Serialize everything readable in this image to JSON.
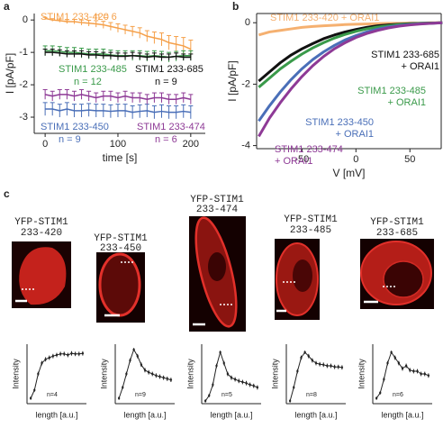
{
  "panel_labels": [
    "a",
    "b",
    "c"
  ],
  "images": [
    {
      "title": [
        "YFP-STIM1",
        "233-420"
      ]
    },
    {
      "title": [
        "YFP-STIM1",
        "233-450"
      ]
    },
    {
      "title": [
        "YFP-STIM1",
        "233-474"
      ]
    },
    {
      "title": [
        "YFP-STIM1",
        "233-485"
      ]
    },
    {
      "title": [
        "YFP-STIM1",
        "233-685"
      ]
    }
  ],
  "chart_data": [
    {
      "type": "line",
      "x_label": "time [s]",
      "y_label": "I [pA/pF]",
      "xlim": [
        -15,
        220
      ],
      "ylim": [
        -3.5,
        0.2
      ],
      "xticks": [
        0,
        100,
        200
      ],
      "yticks": [
        0,
        -1,
        -2,
        -3
      ],
      "x": [
        0,
        10,
        20,
        30,
        40,
        50,
        60,
        70,
        80,
        90,
        100,
        110,
        120,
        130,
        140,
        150,
        160,
        170,
        180,
        190,
        200
      ],
      "series": [
        {
          "name": "STIM1 233-420",
          "n_label": "n = 6",
          "color": "#f5a04a",
          "values": [
            0.05,
            0.0,
            -0.02,
            -0.05,
            -0.05,
            -0.08,
            -0.1,
            -0.12,
            -0.15,
            -0.2,
            -0.25,
            -0.3,
            -0.35,
            -0.4,
            -0.5,
            -0.55,
            -0.6,
            -0.7,
            -0.75,
            -0.8,
            -0.9
          ],
          "errors": [
            0.03,
            0.04,
            0.05,
            0.06,
            0.07,
            0.08,
            0.09,
            0.1,
            0.11,
            0.12,
            0.13,
            0.14,
            0.15,
            0.16,
            0.17,
            0.18,
            0.2,
            0.22,
            0.24,
            0.26,
            0.28
          ]
        },
        {
          "name": "STIM1 233-485",
          "n_label": "n = 12",
          "color": "#3a9a4a",
          "values": [
            -0.95,
            -0.95,
            -0.97,
            -1.0,
            -1.0,
            -1.02,
            -1.05,
            -1.05,
            -1.05,
            -1.08,
            -1.1,
            -1.1,
            -1.1,
            -1.1,
            -1.12,
            -1.1,
            -1.12,
            -1.15,
            -1.12,
            -1.1,
            -1.1
          ],
          "errors": [
            0.15,
            0.15,
            0.15,
            0.15,
            0.15,
            0.15,
            0.15,
            0.15,
            0.15,
            0.15,
            0.15,
            0.15,
            0.15,
            0.15,
            0.15,
            0.15,
            0.15,
            0.15,
            0.15,
            0.15,
            0.15
          ]
        },
        {
          "name": "STIM1 233-685",
          "n_label": "n = 9",
          "color": "#111111",
          "values": [
            -1.0,
            -1.0,
            -1.02,
            -1.05,
            -1.05,
            -1.05,
            -1.08,
            -1.08,
            -1.1,
            -1.1,
            -1.12,
            -1.12,
            -1.1,
            -1.12,
            -1.15,
            -1.12,
            -1.15,
            -1.15,
            -1.12,
            -1.15,
            -1.15
          ],
          "errors": [
            0.1,
            0.1,
            0.1,
            0.1,
            0.1,
            0.1,
            0.1,
            0.1,
            0.1,
            0.1,
            0.1,
            0.1,
            0.1,
            0.1,
            0.1,
            0.1,
            0.1,
            0.1,
            0.1,
            0.1,
            0.1
          ]
        },
        {
          "name": "STIM1 233-450",
          "n_label": "n = 9",
          "color": "#4a6fb8",
          "values": [
            -2.75,
            -2.75,
            -2.8,
            -2.75,
            -2.8,
            -2.8,
            -2.78,
            -2.8,
            -2.8,
            -2.82,
            -2.8,
            -2.8,
            -2.85,
            -2.82,
            -2.8,
            -2.85,
            -2.82,
            -2.85,
            -2.85,
            -2.82,
            -2.85
          ],
          "errors": [
            0.2,
            0.2,
            0.2,
            0.2,
            0.2,
            0.2,
            0.2,
            0.2,
            0.2,
            0.2,
            0.2,
            0.2,
            0.2,
            0.2,
            0.2,
            0.2,
            0.2,
            0.2,
            0.2,
            0.2,
            0.2
          ]
        },
        {
          "name": "STIM1 233-474",
          "n_label": "n = 6",
          "color": "#8e3a96",
          "values": [
            -2.3,
            -2.35,
            -2.3,
            -2.3,
            -2.35,
            -2.3,
            -2.35,
            -2.4,
            -2.35,
            -2.35,
            -2.4,
            -2.35,
            -2.4,
            -2.4,
            -2.45,
            -2.4,
            -2.4,
            -2.45,
            -2.45,
            -2.4,
            -2.45
          ],
          "errors": [
            0.15,
            0.15,
            0.15,
            0.15,
            0.15,
            0.15,
            0.15,
            0.15,
            0.15,
            0.15,
            0.15,
            0.15,
            0.15,
            0.15,
            0.15,
            0.15,
            0.15,
            0.15,
            0.15,
            0.15,
            0.15
          ]
        }
      ]
    },
    {
      "type": "line",
      "x_label": "V [mV]",
      "y_label": "I [pA/pF]",
      "xlim": [
        -92,
        79
      ],
      "ylim": [
        -4.1,
        0.3
      ],
      "xticks": [
        -50,
        0,
        50
      ],
      "yticks": [
        0,
        -2,
        -4
      ],
      "x": [
        -90,
        -80,
        -70,
        -60,
        -50,
        -40,
        -30,
        -20,
        -10,
        0,
        10,
        20,
        30,
        40,
        50,
        60,
        70,
        80
      ],
      "series": [
        {
          "name": [
            "STIM1 233-420 + ORAI1"
          ],
          "color": "#f5b070",
          "values": [
            -0.4,
            -0.3,
            -0.25,
            -0.2,
            -0.15,
            -0.12,
            -0.1,
            -0.08,
            -0.06,
            -0.05,
            -0.04,
            -0.03,
            -0.02,
            -0.02,
            -0.01,
            -0.01,
            0,
            0
          ]
        },
        {
          "name": [
            "STIM1 233-685",
            "+ ORAI1"
          ],
          "color": "#111111",
          "values": [
            -1.9,
            -1.6,
            -1.3,
            -1.05,
            -0.85,
            -0.68,
            -0.52,
            -0.4,
            -0.3,
            -0.22,
            -0.15,
            -0.1,
            -0.07,
            -0.05,
            -0.03,
            -0.02,
            -0.01,
            0
          ]
        },
        {
          "name": [
            "STIM1 233-485",
            "+ ORAI1"
          ],
          "color": "#3a9a4a",
          "values": [
            -2.1,
            -1.8,
            -1.5,
            -1.25,
            -1.02,
            -0.82,
            -0.65,
            -0.5,
            -0.38,
            -0.28,
            -0.2,
            -0.14,
            -0.1,
            -0.06,
            -0.04,
            -0.02,
            -0.01,
            0
          ]
        },
        {
          "name": [
            "STIM1 233-450",
            "+ ORAI1"
          ],
          "color": "#4a6fb8",
          "values": [
            -3.2,
            -2.7,
            -2.25,
            -1.85,
            -1.5,
            -1.2,
            -0.95,
            -0.74,
            -0.56,
            -0.42,
            -0.3,
            -0.21,
            -0.14,
            -0.09,
            -0.06,
            -0.03,
            -0.02,
            0
          ]
        },
        {
          "name": [
            "STIM1 233-474",
            "+ ORAI1"
          ],
          "color": "#8e3a96",
          "values": [
            -3.7,
            -3.1,
            -2.6,
            -2.15,
            -1.75,
            -1.4,
            -1.1,
            -0.85,
            -0.65,
            -0.48,
            -0.35,
            -0.25,
            -0.17,
            -0.11,
            -0.07,
            -0.04,
            -0.02,
            0
          ]
        }
      ]
    },
    {
      "type": "line",
      "x_label": "length [a.u.]",
      "y_label": "Intensity",
      "n_label": "n=4",
      "xlim": [
        0,
        16
      ],
      "ylim": [
        0,
        1.1
      ],
      "x": [
        1,
        2,
        3,
        4,
        5,
        6,
        7,
        8,
        9,
        10,
        11,
        12,
        13,
        14,
        15
      ],
      "series": [
        {
          "color": "#222222",
          "values": [
            0.1,
            0.25,
            0.55,
            0.75,
            0.82,
            0.85,
            0.88,
            0.9,
            0.92,
            0.92,
            0.9,
            0.93,
            0.92,
            0.92,
            0.93
          ],
          "errors": [
            0.03,
            0.03,
            0.04,
            0.04,
            0.04,
            0.04,
            0.04,
            0.04,
            0.04,
            0.04,
            0.04,
            0.04,
            0.04,
            0.04,
            0.04
          ]
        }
      ]
    },
    {
      "type": "line",
      "x_label": "length [a.u.]",
      "y_label": "Intensity",
      "n_label": "n=9",
      "xlim": [
        0,
        16
      ],
      "ylim": [
        0,
        1.1
      ],
      "x": [
        1,
        2,
        3,
        4,
        5,
        6,
        7,
        8,
        9,
        10,
        11,
        12,
        13,
        14,
        15
      ],
      "series": [
        {
          "color": "#222222",
          "values": [
            0.1,
            0.3,
            0.55,
            0.8,
            1.0,
            0.88,
            0.72,
            0.62,
            0.58,
            0.55,
            0.52,
            0.5,
            0.48,
            0.46,
            0.44
          ],
          "errors": [
            0.03,
            0.03,
            0.04,
            0.04,
            0.03,
            0.04,
            0.04,
            0.04,
            0.04,
            0.04,
            0.04,
            0.04,
            0.04,
            0.04,
            0.04
          ]
        }
      ]
    },
    {
      "type": "line",
      "x_label": "length [a.u.]",
      "y_label": "Intensity",
      "n_label": "n=5",
      "xlim": [
        0,
        16
      ],
      "ylim": [
        0,
        1.1
      ],
      "x": [
        1,
        2,
        3,
        4,
        5,
        6,
        7,
        8,
        9,
        10,
        11,
        12,
        13,
        14,
        15
      ],
      "series": [
        {
          "color": "#222222",
          "values": [
            0.05,
            0.15,
            0.35,
            0.7,
            0.95,
            0.75,
            0.55,
            0.48,
            0.45,
            0.42,
            0.4,
            0.38,
            0.35,
            0.33,
            0.3
          ],
          "errors": [
            0.03,
            0.03,
            0.04,
            0.04,
            0.03,
            0.04,
            0.04,
            0.04,
            0.04,
            0.04,
            0.04,
            0.04,
            0.04,
            0.04,
            0.04
          ]
        }
      ]
    },
    {
      "type": "line",
      "x_label": "length [a.u.]",
      "y_label": "Intensity",
      "n_label": "n=8",
      "xlim": [
        0,
        16
      ],
      "ylim": [
        0,
        1.1
      ],
      "x": [
        1,
        2,
        3,
        4,
        5,
        6,
        7,
        8,
        9,
        10,
        11,
        12,
        13,
        14,
        15
      ],
      "series": [
        {
          "color": "#222222",
          "values": [
            0.05,
            0.3,
            0.6,
            0.85,
            0.95,
            0.88,
            0.8,
            0.75,
            0.73,
            0.72,
            0.7,
            0.7,
            0.68,
            0.68,
            0.67
          ],
          "errors": [
            0.03,
            0.03,
            0.04,
            0.04,
            0.03,
            0.04,
            0.04,
            0.04,
            0.04,
            0.04,
            0.04,
            0.04,
            0.04,
            0.04,
            0.04
          ]
        }
      ]
    },
    {
      "type": "line",
      "x_label": "length [a.u.]",
      "y_label": "Intensity",
      "n_label": "n=6",
      "xlim": [
        0,
        16
      ],
      "ylim": [
        0,
        1.1
      ],
      "x": [
        1,
        2,
        3,
        4,
        5,
        6,
        7,
        8,
        9,
        10,
        11,
        12,
        13,
        14,
        15
      ],
      "series": [
        {
          "color": "#222222",
          "values": [
            0.1,
            0.2,
            0.45,
            0.75,
            0.95,
            0.85,
            0.75,
            0.65,
            0.7,
            0.62,
            0.6,
            0.6,
            0.55,
            0.55,
            0.52
          ],
          "errors": [
            0.03,
            0.03,
            0.04,
            0.04,
            0.03,
            0.04,
            0.04,
            0.04,
            0.04,
            0.04,
            0.04,
            0.04,
            0.04,
            0.04,
            0.04
          ]
        }
      ]
    }
  ]
}
